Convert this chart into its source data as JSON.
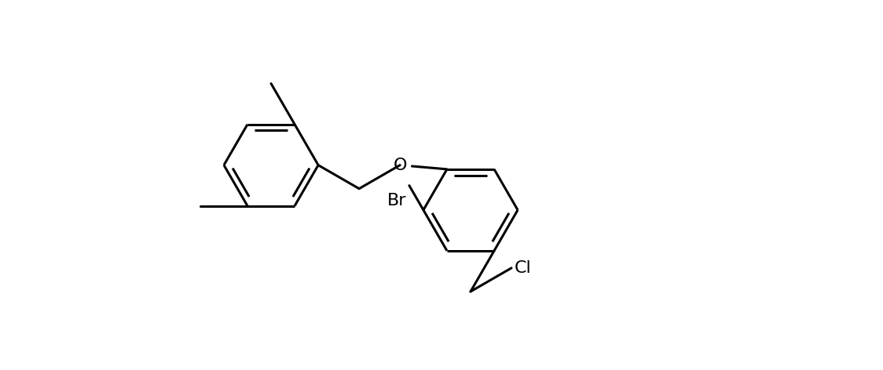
{
  "background_color": "#ffffff",
  "line_color": "#000000",
  "line_width": 2.2,
  "font_size": 16,
  "figsize": [
    11.24,
    4.72
  ],
  "dpi": 100,
  "xlim": [
    0,
    11.24
  ],
  "ylim": [
    0,
    4.72
  ]
}
